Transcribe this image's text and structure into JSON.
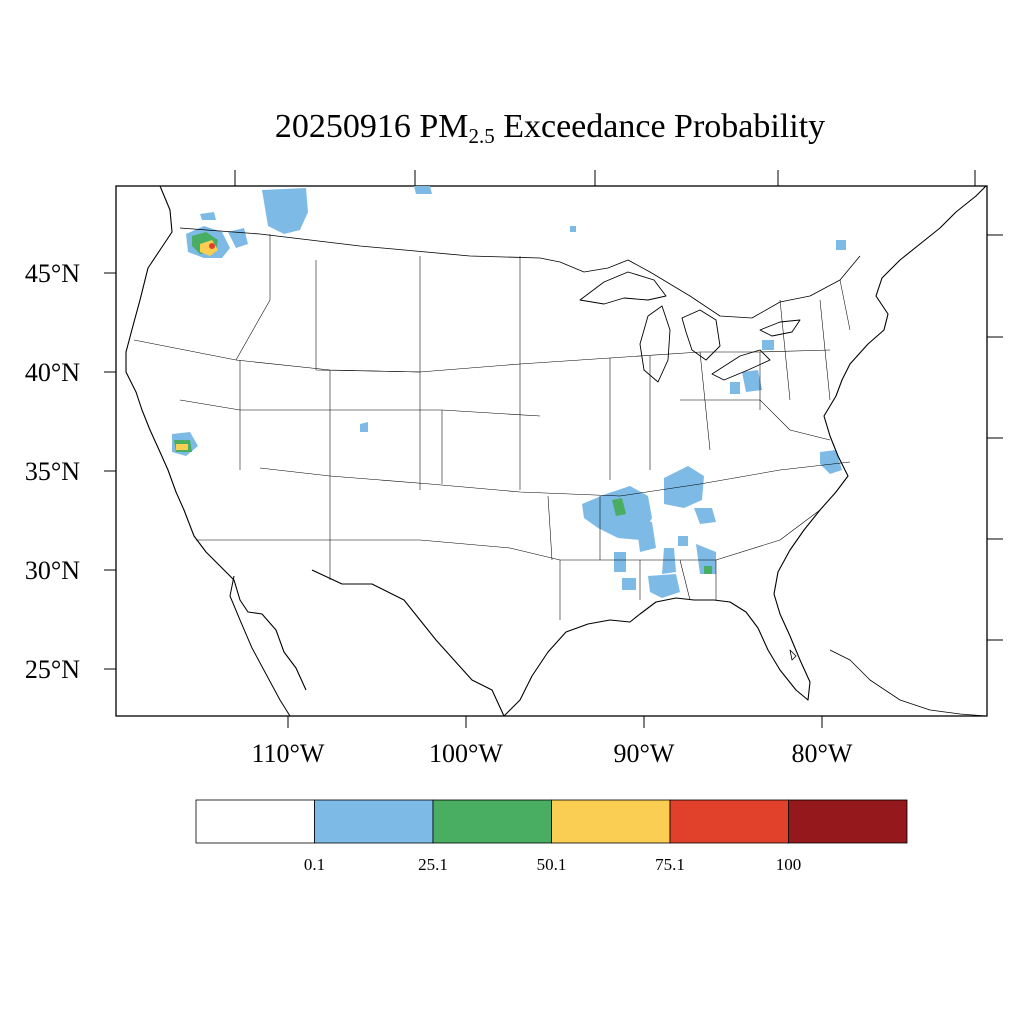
{
  "title": {
    "date": "20250916",
    "prefix": "PM",
    "subscript": "2.5",
    "suffix": "Exceedance Probability"
  },
  "lat_labels": [
    "45°N",
    "40°N",
    "35°N",
    "30°N",
    "25°N"
  ],
  "lon_labels": [
    "110°W",
    "100°W",
    "90°W",
    "80°W"
  ],
  "colorbar": {
    "colors": [
      "#ffffff",
      "#7dbbe6",
      "#4aae62",
      "#f9ce53",
      "#e1402a",
      "#94181c"
    ],
    "labels": [
      "0.1",
      "25.1",
      "50.1",
      "75.1",
      "100"
    ]
  }
}
